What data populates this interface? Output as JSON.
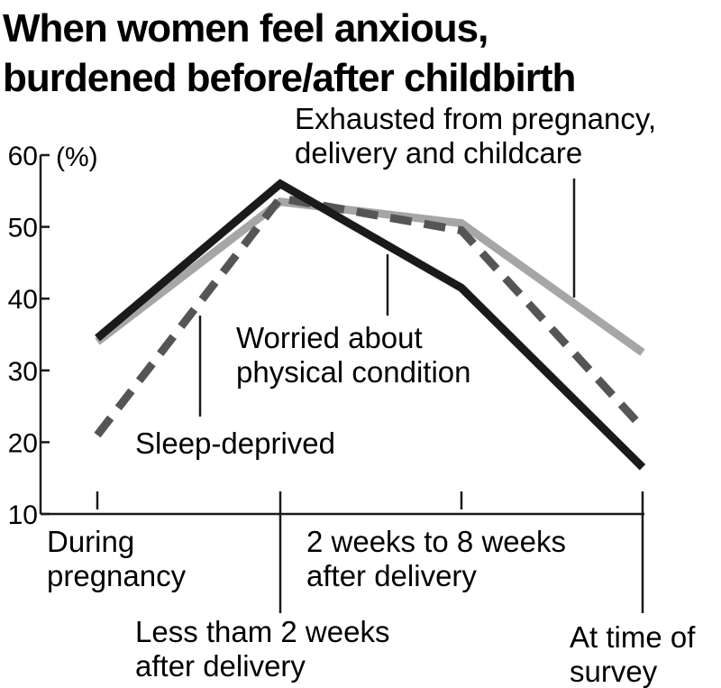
{
  "chart_data": {
    "type": "line",
    "title": [
      "When women feel anxious,",
      "burdened before/after childbirth"
    ],
    "ylabel": "(%)",
    "ylim": [
      10,
      60
    ],
    "yticks": [
      60,
      50,
      40,
      30,
      20,
      10
    ],
    "categories": [
      [
        "During",
        "pregnancy"
      ],
      [
        "Less tham 2 weeks",
        "after delivery"
      ],
      [
        "2 weeks to 8 weeks",
        "after delivery"
      ],
      [
        "At time of",
        "survey"
      ]
    ],
    "series": [
      {
        "name": [
          "Worried about",
          "physical condition"
        ],
        "values": [
          34.5,
          56,
          41.5,
          16.5
        ],
        "color": "#1a1a1a",
        "style": "solid"
      },
      {
        "name": [
          "Exhausted from pregnancy,",
          "delivery and childcare"
        ],
        "values": [
          34,
          53.5,
          50.5,
          32.5
        ],
        "color": "#a6a6a6",
        "style": "solid"
      },
      {
        "name": [
          "Sleep-deprived"
        ],
        "values": [
          21,
          54,
          49.5,
          22
        ],
        "color": "#555555",
        "style": "dashed"
      }
    ],
    "grid": false,
    "legend": "inline annotations"
  }
}
